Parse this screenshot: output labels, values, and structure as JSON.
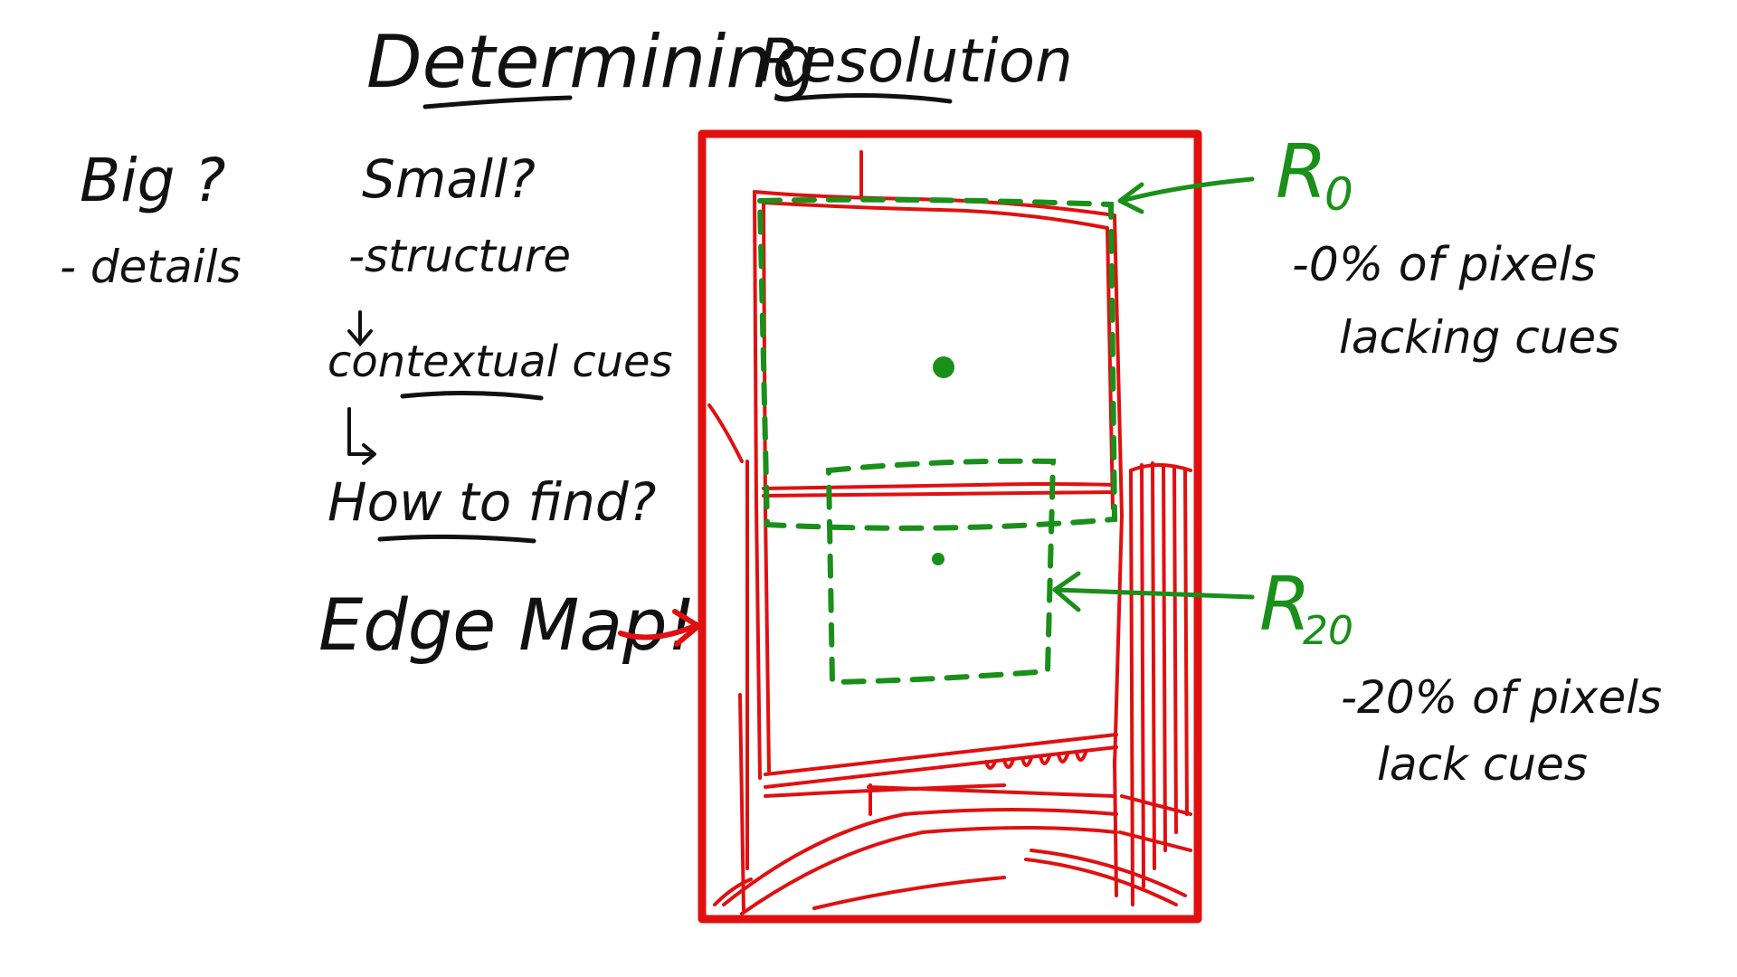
{
  "title": {
    "word1": "Determining",
    "word2": "Resolution"
  },
  "notes": {
    "big": "Big ?",
    "big_detail": "- details",
    "small": "Small?",
    "small_detail": "-structure",
    "contextual": "contextual cues",
    "how": "How to find?",
    "edge_map": "Edge Map!"
  },
  "regions": {
    "r0_label": "R",
    "r0_sub": "0",
    "r0_note_line1": "-0% of pixels",
    "r0_note_line2": "lacking cues",
    "r20_label": "R",
    "r20_sub": "20",
    "r20_note_line1": "-20% of pixels",
    "r20_note_line2": "lack cues"
  },
  "colors": {
    "black_ink": "#111111",
    "green_ink": "#1a8f1a",
    "red_ink": "#e01010"
  }
}
